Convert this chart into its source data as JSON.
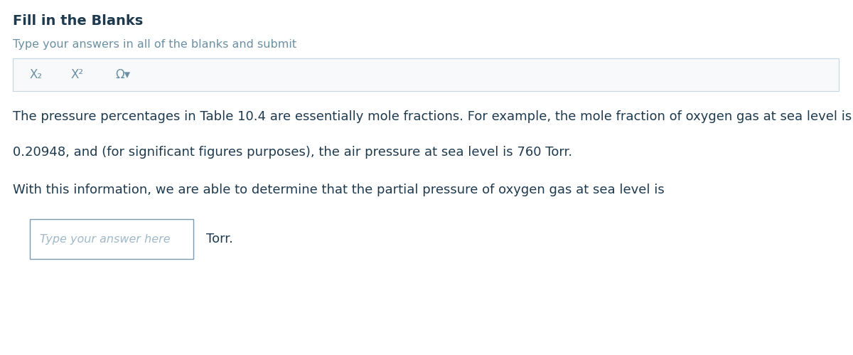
{
  "title": "Fill in the Blanks",
  "subtitle": "Type your answers in all of the blanks and submit",
  "toolbar_symbols": [
    "X₂",
    "X²",
    "Ω▾"
  ],
  "paragraph1": "The pressure percentages in Table 10.4 are essentially mole fractions. For example, the mole fraction of oxygen gas at sea level is",
  "paragraph2": "0.20948, and (for significant figures purposes), the air pressure at sea level is 760 Torr.",
  "paragraph3": "With this information, we are able to determine that the partial pressure of oxygen gas at sea level is",
  "input_placeholder": "Type your answer here",
  "input_suffix": "Torr.",
  "bg_color": "#ffffff",
  "title_color": "#1e3a4f",
  "subtitle_color": "#6b8fa3",
  "text_color": "#1e3a4f",
  "toolbar_border_color": "#c5d5df",
  "toolbar_bg_color": "#f7f9fb",
  "input_border_color": "#7a9ab0",
  "input_text_color": "#a0b8c8",
  "title_fontsize": 14,
  "subtitle_fontsize": 11.5,
  "toolbar_fontsize": 12,
  "body_fontsize": 13,
  "input_fontsize": 11.5,
  "suffix_fontsize": 13
}
